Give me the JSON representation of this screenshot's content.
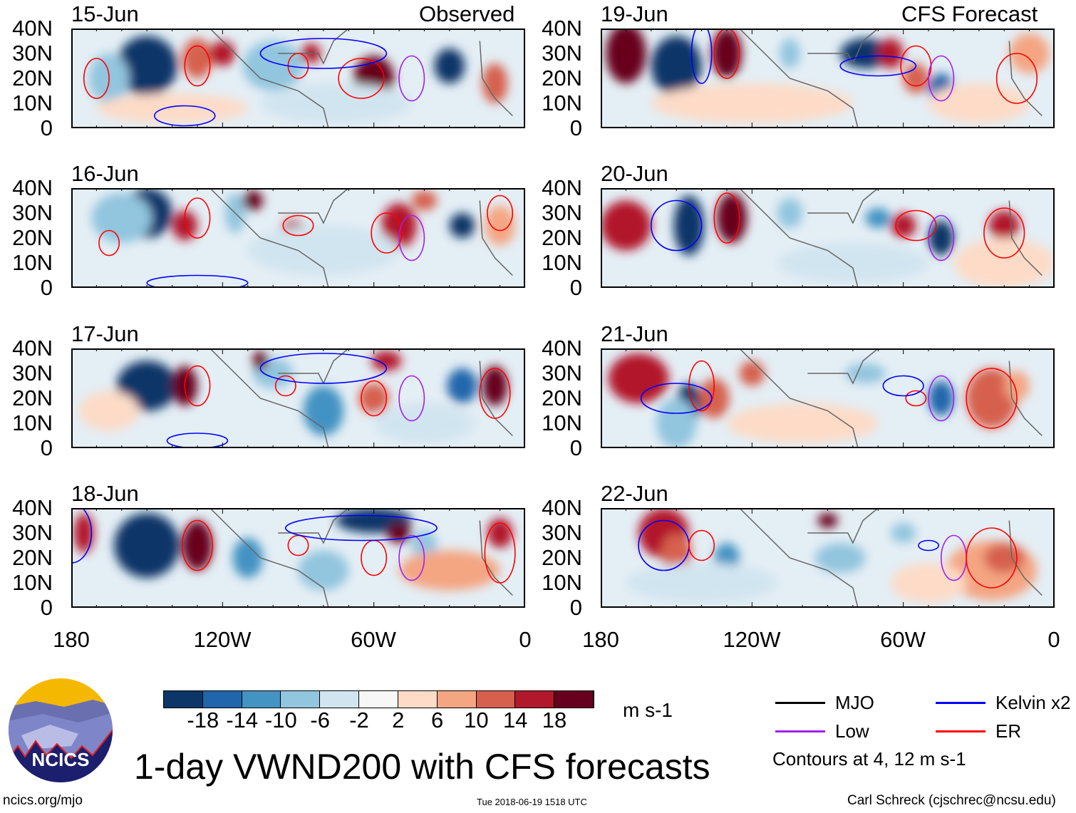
{
  "header": {
    "left_title": "Observed",
    "right_title": "CFS Forecast"
  },
  "panels": [
    {
      "date": "15-Jun",
      "column": "observed"
    },
    {
      "date": "16-Jun",
      "column": "observed"
    },
    {
      "date": "17-Jun",
      "column": "observed"
    },
    {
      "date": "18-Jun",
      "column": "observed"
    },
    {
      "date": "19-Jun",
      "column": "forecast"
    },
    {
      "date": "20-Jun",
      "column": "forecast"
    },
    {
      "date": "21-Jun",
      "column": "forecast"
    },
    {
      "date": "22-Jun",
      "column": "forecast"
    }
  ],
  "lat_labels": [
    "40N",
    "30N",
    "20N",
    "10N",
    "0"
  ],
  "lon_labels": [
    "180",
    "120W",
    "60W",
    "0"
  ],
  "colorbar": {
    "colors": [
      "#0b3667",
      "#2166ac",
      "#4393c3",
      "#92c5de",
      "#d1e5f0",
      "#f7f7f7",
      "#fddbc7",
      "#f4a582",
      "#d6604d",
      "#b2182b",
      "#67001f"
    ],
    "ticks": [
      "-18",
      "-14",
      "-10",
      "-6",
      "-2",
      "2",
      "6",
      "10",
      "14",
      "18"
    ],
    "units": "m s-1"
  },
  "legend": {
    "items": [
      {
        "label": "MJO",
        "color": "#000000"
      },
      {
        "label": "Kelvin x2",
        "color": "#0000ff"
      },
      {
        "label": "Low",
        "color": "#a020f0"
      },
      {
        "label": "ER",
        "color": "#ff0000"
      }
    ],
    "note": "Contours at 4, 12 m s-1"
  },
  "logo": {
    "text": "NCICS"
  },
  "title": "1-day VWND200 with CFS forecasts",
  "footer": {
    "url": "ncics.org/mjo",
    "timestamp": "Tue 2018-06-19 1518 UTC",
    "author": "Carl Schreck (cjschrec@ncsu.edu)"
  }
}
